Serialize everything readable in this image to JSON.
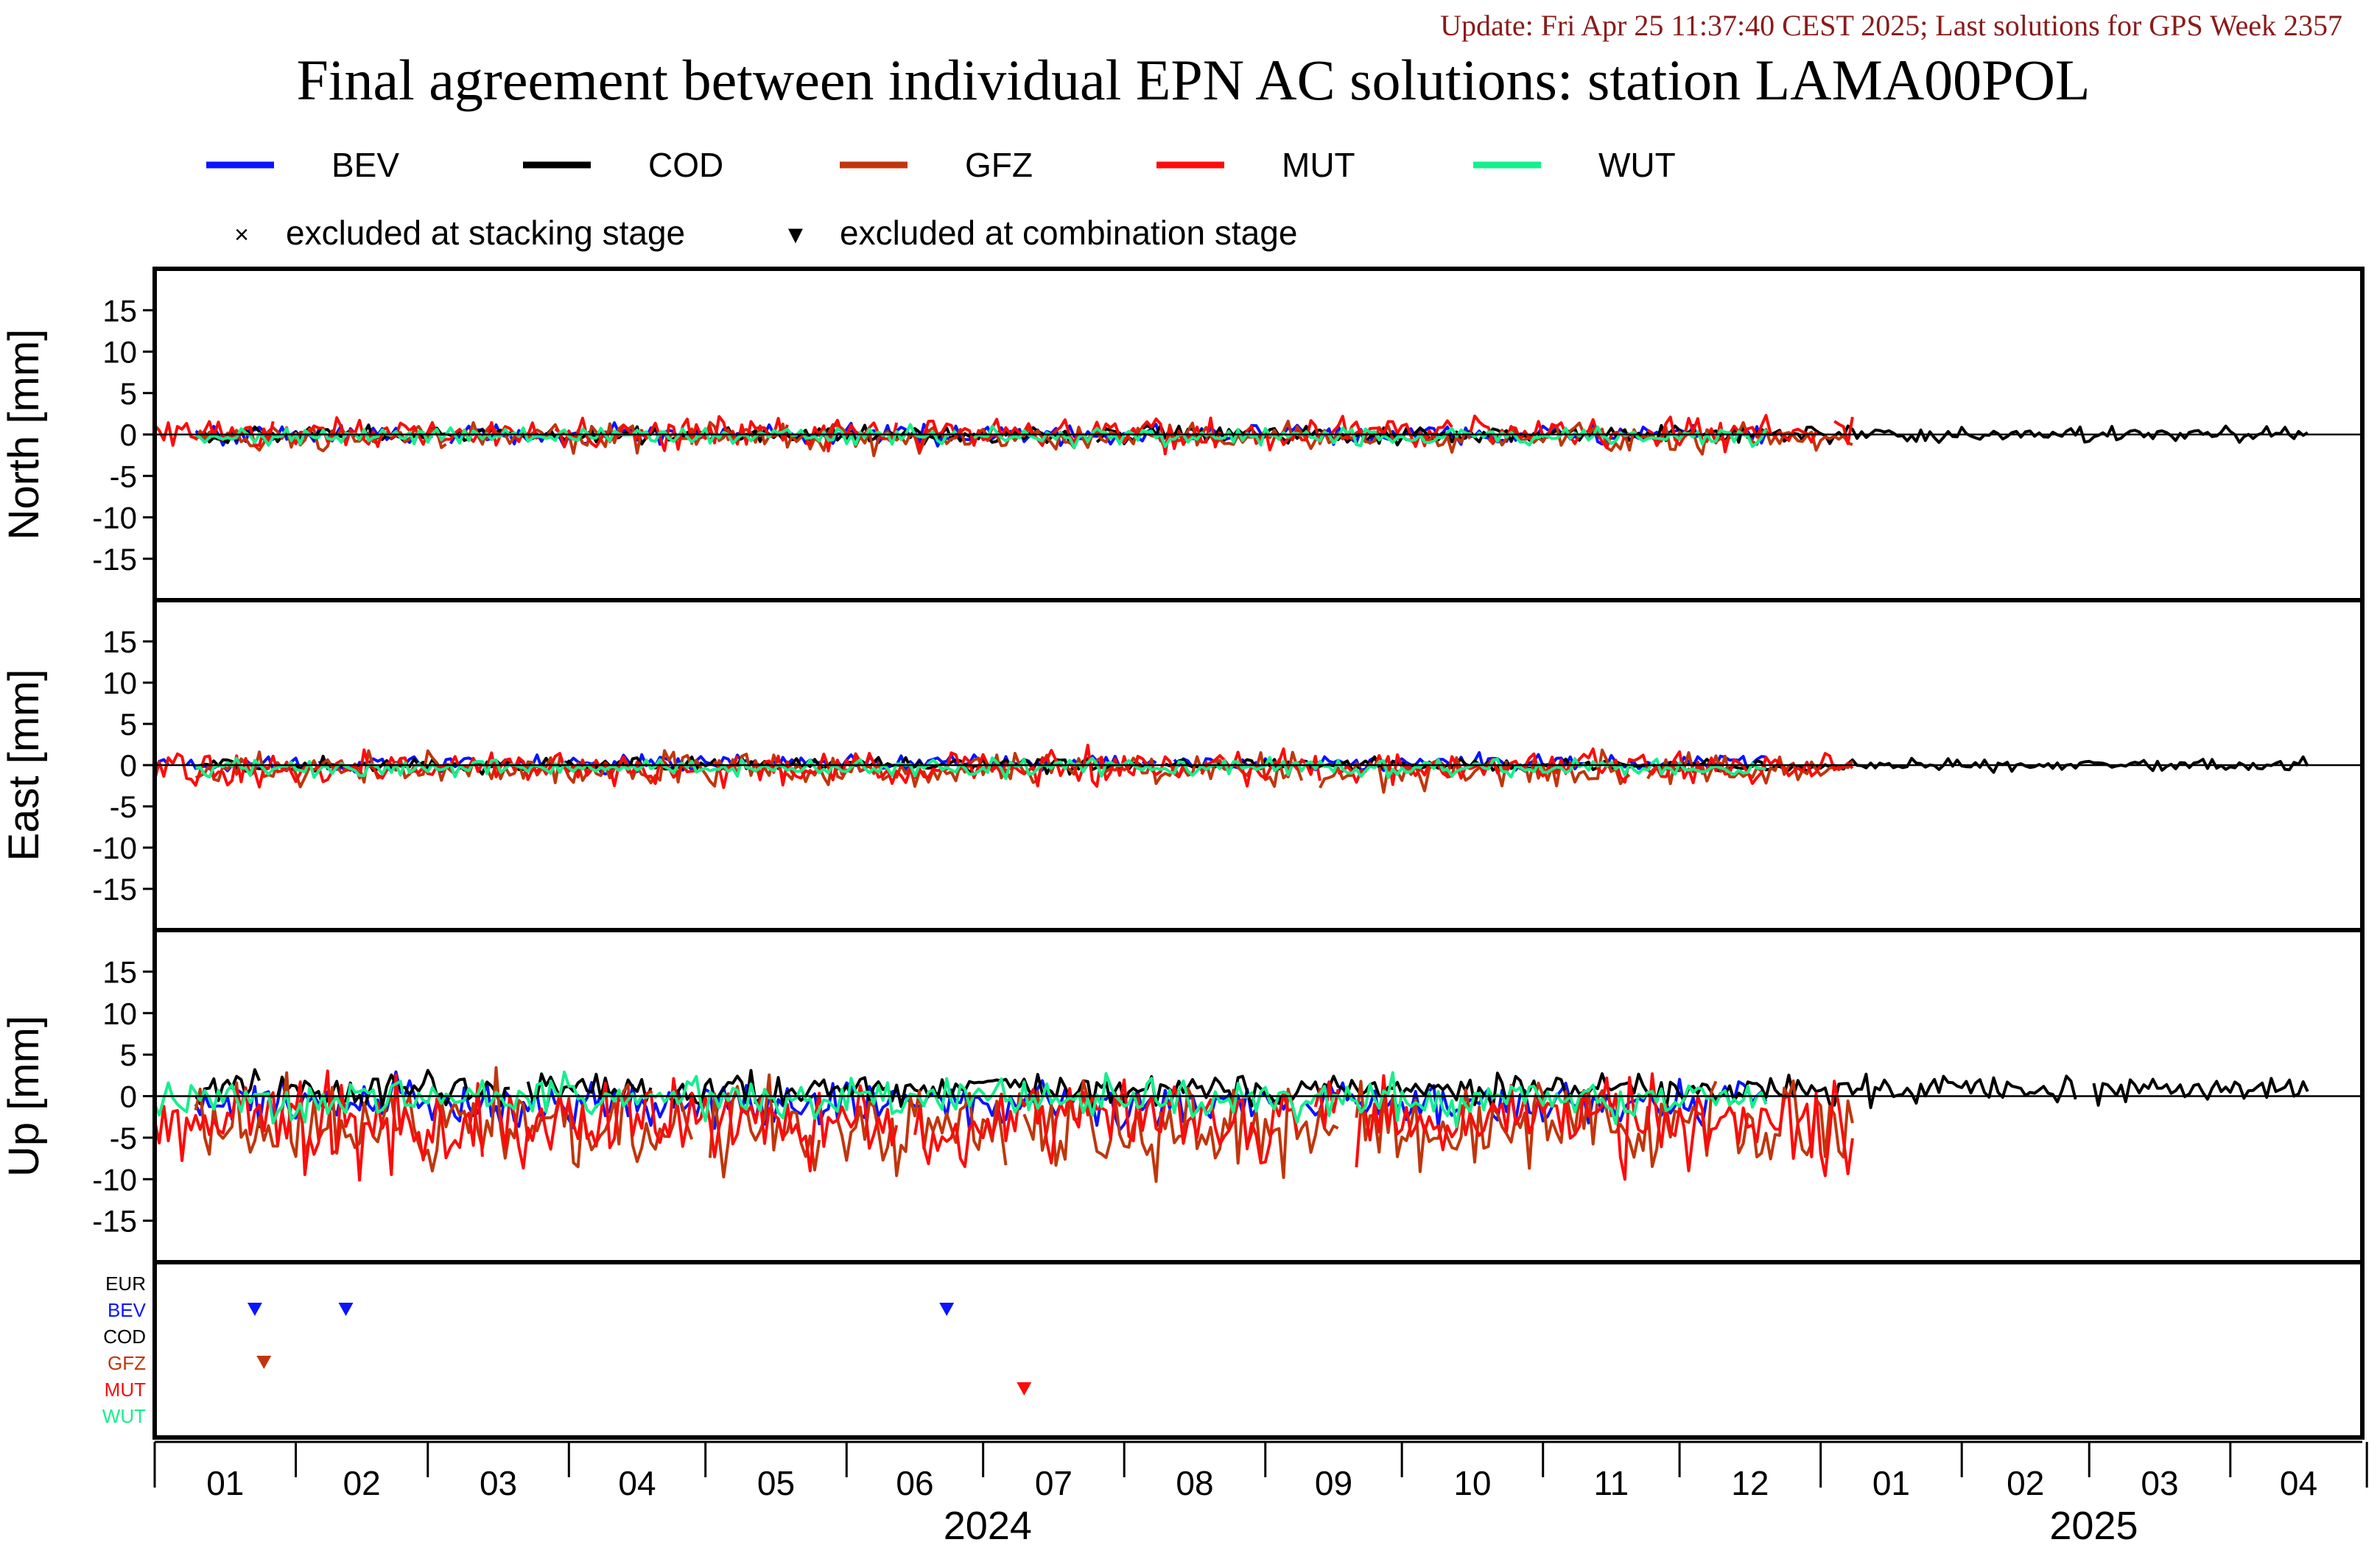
{
  "header": {
    "update": "Update: Fri Apr 25 11:37:40 CEST 2025; Last solutions for GPS Week 2357",
    "title": "Final agreement between individual EPN AC solutions: station LAMA00POL"
  },
  "colors": {
    "BEV": "#0a14ff",
    "COD": "#000000",
    "GFZ": "#c0360c",
    "MUT": "#ff0a0a",
    "WUT": "#14f08c",
    "update": "#8b1a1a"
  },
  "legend": {
    "series": [
      {
        "name": "BEV",
        "color": "#0a14ff"
      },
      {
        "name": "COD",
        "color": "#000000"
      },
      {
        "name": "GFZ",
        "color": "#c0360c"
      },
      {
        "name": "MUT",
        "color": "#ff0a0a"
      },
      {
        "name": "WUT",
        "color": "#14f08c"
      }
    ],
    "markers": [
      {
        "symbol": "×",
        "label": "excluded at stacking stage"
      },
      {
        "symbol": "▼",
        "label": "excluded at combination stage"
      }
    ]
  },
  "chart_data": {
    "type": "line",
    "x_axis": {
      "range": [
        "2024-01-01",
        "2025-04-30"
      ],
      "month_labels": [
        "01",
        "02",
        "03",
        "04",
        "05",
        "06",
        "07",
        "08",
        "09",
        "10",
        "11",
        "12",
        "01",
        "02",
        "03",
        "04"
      ],
      "year_labels": [
        "2024",
        "2025"
      ]
    },
    "panels": [
      {
        "id": "north",
        "ylabel": "North [mm]",
        "ylim": [
          -20,
          20
        ],
        "yticks": [
          15,
          10,
          5,
          0,
          -5,
          -10,
          -15
        ],
        "series": [
          {
            "name": "BEV",
            "amplitude": 0.6,
            "offset": 0.0,
            "start": "2024-01-10",
            "end": "2024-12-20"
          },
          {
            "name": "COD",
            "amplitude": 0.5,
            "offset": 0.0,
            "start": "2024-01-10",
            "end": "2025-04-18"
          },
          {
            "name": "GFZ",
            "amplitude": 0.8,
            "offset": -0.3,
            "start": "2024-01-10",
            "end": "2025-01-08"
          },
          {
            "name": "MUT",
            "amplitude": 1.0,
            "offset": 0.2,
            "start": "2024-01-01",
            "end": "2025-01-08"
          },
          {
            "name": "WUT",
            "amplitude": 0.5,
            "offset": -0.2,
            "start": "2024-01-10",
            "end": "2024-12-20"
          }
        ]
      },
      {
        "id": "east",
        "ylabel": "East [mm]",
        "ylim": [
          -20,
          20
        ],
        "yticks": [
          15,
          10,
          5,
          0,
          -5,
          -10,
          -15
        ],
        "series": [
          {
            "name": "BEV",
            "amplitude": 0.5,
            "offset": 0.2,
            "start": "2024-01-01",
            "end": "2024-12-20"
          },
          {
            "name": "COD",
            "amplitude": 0.4,
            "offset": 0.0,
            "start": "2024-01-10",
            "end": "2025-04-18"
          },
          {
            "name": "GFZ",
            "amplitude": 1.0,
            "offset": -0.6,
            "start": "2024-01-10",
            "end": "2025-01-08"
          },
          {
            "name": "MUT",
            "amplitude": 1.0,
            "offset": -0.3,
            "start": "2024-01-01",
            "end": "2025-01-08"
          },
          {
            "name": "WUT",
            "amplitude": 0.5,
            "offset": -0.3,
            "start": "2024-01-10",
            "end": "2024-12-20"
          }
        ]
      },
      {
        "id": "up",
        "ylabel": "Up [mm]",
        "ylim": [
          -20,
          20
        ],
        "yticks": [
          15,
          10,
          5,
          0,
          -5,
          -10,
          -15
        ],
        "series": [
          {
            "name": "BEV",
            "amplitude": 1.3,
            "offset": -0.8,
            "start": "2024-01-10",
            "end": "2024-12-20"
          },
          {
            "name": "COD",
            "amplitude": 1.0,
            "offset": 0.8,
            "start": "2024-01-10",
            "end": "2025-04-18"
          },
          {
            "name": "GFZ",
            "amplitude": 2.6,
            "offset": -3.5,
            "start": "2024-01-10",
            "end": "2025-01-08"
          },
          {
            "name": "MUT",
            "amplitude": 2.6,
            "offset": -3.2,
            "start": "2024-01-01",
            "end": "2025-01-08"
          },
          {
            "name": "WUT",
            "amplitude": 1.2,
            "offset": -0.4,
            "start": "2024-01-01",
            "end": "2024-12-20"
          }
        ]
      }
    ],
    "exclusions": {
      "rows": [
        "EUR",
        "BEV",
        "COD",
        "GFZ",
        "MUT",
        "WUT"
      ],
      "markers": [
        {
          "ac": "BEV",
          "date": "2024-01-23"
        },
        {
          "ac": "BEV",
          "date": "2024-02-12"
        },
        {
          "ac": "BEV",
          "date": "2024-06-23"
        },
        {
          "ac": "GFZ",
          "date": "2024-01-25"
        },
        {
          "ac": "MUT",
          "date": "2024-07-10"
        }
      ]
    }
  }
}
